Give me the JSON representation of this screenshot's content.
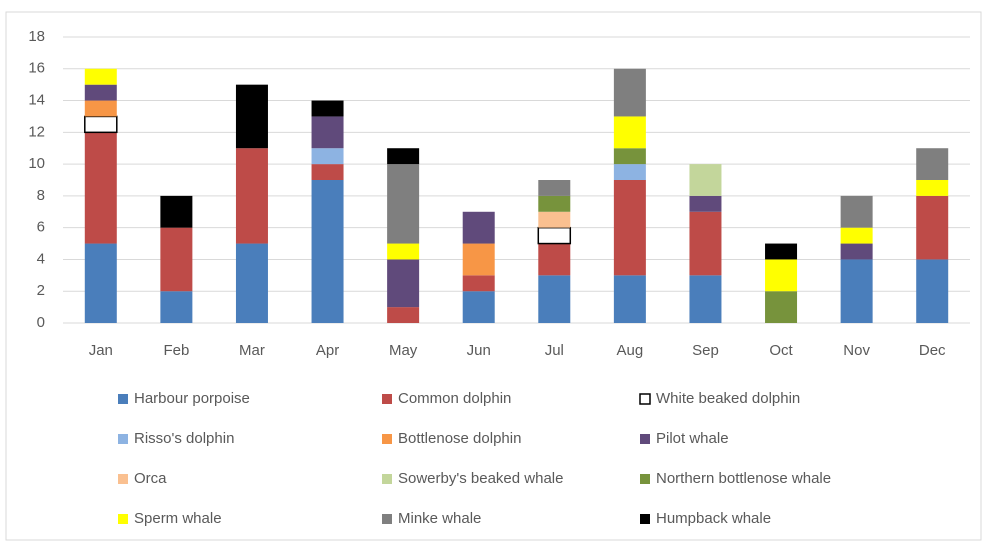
{
  "chart_data": {
    "type": "stacked_bar",
    "categories": [
      "Jan",
      "Feb",
      "Mar",
      "Apr",
      "May",
      "Jun",
      "Jul",
      "Aug",
      "Sep",
      "Oct",
      "Nov",
      "Dec"
    ],
    "ylim": [
      0,
      18
    ],
    "yticks": [
      0,
      2,
      4,
      6,
      8,
      10,
      12,
      14,
      16,
      18
    ],
    "grid": true,
    "legend": "bottom",
    "series": [
      {
        "name": "Harbour porpoise",
        "color": "#4a7ebb",
        "values": [
          5,
          2,
          5,
          9,
          0,
          2,
          3,
          3,
          3,
          0,
          4,
          4
        ]
      },
      {
        "name": "Common dolphin",
        "color": "#be4b48",
        "values": [
          7,
          4,
          6,
          1,
          1,
          1,
          2,
          6,
          4,
          0,
          0,
          4
        ]
      },
      {
        "name": "White beaked dolphin",
        "color": "#ffffff",
        "values": [
          1,
          0,
          0,
          0,
          0,
          0,
          1,
          0,
          0,
          0,
          0,
          0
        ]
      },
      {
        "name": "Risso's dolphin",
        "color": "#8db3e2",
        "values": [
          0,
          0,
          0,
          1,
          0,
          0,
          0,
          1,
          0,
          0,
          0,
          0
        ]
      },
      {
        "name": "Bottlenose dolphin",
        "color": "#f79646",
        "values": [
          1,
          0,
          0,
          0,
          0,
          2,
          0,
          0,
          0,
          0,
          0,
          0
        ]
      },
      {
        "name": "Pilot whale",
        "color": "#604a7b",
        "values": [
          1,
          0,
          0,
          2,
          3,
          2,
          0,
          0,
          1,
          0,
          1,
          0
        ]
      },
      {
        "name": "Orca",
        "color": "#fac090",
        "values": [
          0,
          0,
          0,
          0,
          0,
          0,
          1,
          0,
          0,
          0,
          0,
          0
        ]
      },
      {
        "name": "Sowerby's beaked whale",
        "color": "#c3d69b",
        "values": [
          0,
          0,
          0,
          0,
          0,
          0,
          0,
          0,
          2,
          0,
          0,
          0
        ]
      },
      {
        "name": "Northern bottlenose whale",
        "color": "#77933c",
        "values": [
          0,
          0,
          0,
          0,
          0,
          0,
          1,
          1,
          0,
          2,
          0,
          0
        ]
      },
      {
        "name": "Sperm whale",
        "color": "#ffff00",
        "values": [
          1,
          0,
          0,
          0,
          1,
          0,
          0,
          2,
          0,
          2,
          1,
          1
        ]
      },
      {
        "name": "Minke whale",
        "color": "#7f7f7f",
        "values": [
          0,
          0,
          0,
          0,
          5,
          0,
          1,
          3,
          0,
          0,
          2,
          2
        ]
      },
      {
        "name": "Humpback whale",
        "color": "#000000",
        "values": [
          0,
          2,
          4,
          1,
          1,
          0,
          0,
          0,
          0,
          1,
          0,
          0
        ]
      }
    ]
  }
}
